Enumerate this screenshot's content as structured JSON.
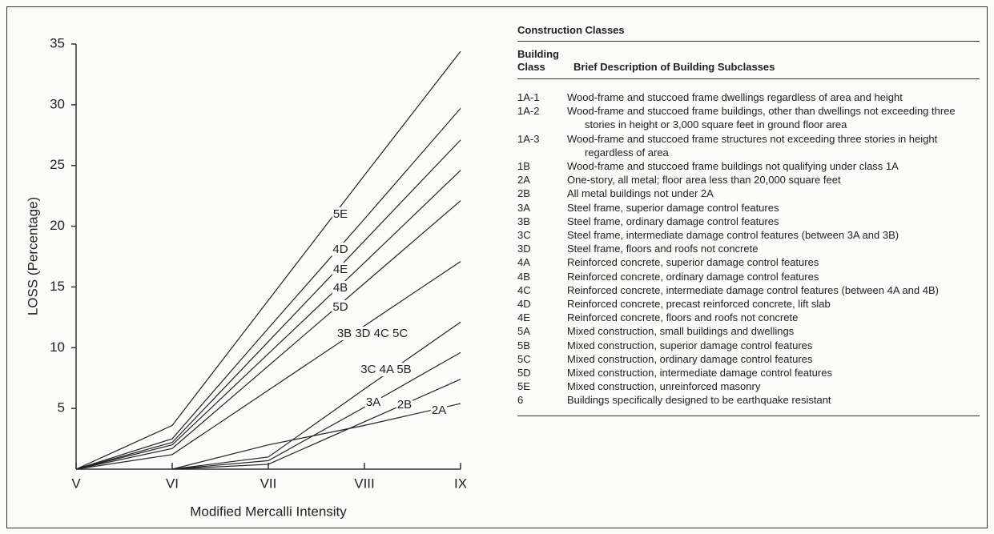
{
  "chart_data": {
    "type": "line",
    "y_label": "LOSS (Percentage)",
    "x_label": "Modified Mercalli Intensity",
    "categories": [
      "V",
      "VI",
      "VII",
      "VIII",
      "IX"
    ],
    "ylim": [
      0,
      35
    ],
    "yticks": [
      5,
      10,
      15,
      20,
      25,
      30,
      35
    ],
    "series": [
      {
        "name": "5E",
        "color": "#222222",
        "values": [
          0,
          3.6,
          13.9,
          24.2,
          34.4
        ]
      },
      {
        "name": "4D",
        "color": "#222222",
        "values": [
          0,
          2.5,
          11.6,
          20.6,
          29.7
        ]
      },
      {
        "name": "4E",
        "color": "#222222",
        "values": [
          0,
          2.2,
          10.5,
          18.8,
          27.1
        ]
      },
      {
        "name": "4B",
        "color": "#222222",
        "values": [
          0,
          2.0,
          9.5,
          17.0,
          24.6
        ]
      },
      {
        "name": "5D",
        "color": "#222222",
        "values": [
          0,
          1.7,
          8.5,
          15.3,
          22.1
        ]
      },
      {
        "name": "3B 3D 4C 5C",
        "color": "#222222",
        "values": [
          0,
          1.2,
          6.5,
          11.8,
          17.1
        ]
      },
      {
        "name": "3C 4A 5B",
        "color": "#222222",
        "values": [
          null,
          0,
          1.0,
          6.6,
          12.1
        ]
      },
      {
        "name": "3A",
        "color": "#222222",
        "values": [
          null,
          0,
          0.7,
          5.1,
          9.6
        ]
      },
      {
        "name": "2B",
        "color": "#222222",
        "values": [
          null,
          0,
          0.4,
          3.9,
          7.4
        ]
      },
      {
        "name": "2A",
        "color": "#222222",
        "values": [
          null,
          0,
          2.0,
          3.6,
          5.4
        ]
      }
    ]
  },
  "table": {
    "title": "Construction Classes",
    "header": [
      "Building\nClass",
      "Brief Description of Building Subclasses"
    ],
    "rows": [
      [
        "1A-1",
        "Wood-frame and stuccoed frame dwellings regardless of area and height"
      ],
      [
        "1A-2",
        "Wood-frame and stuccoed frame buildings, other than dwellings not exceeding three stories in height or 3,000 square feet in ground floor area"
      ],
      [
        "1A-3",
        "Wood-frame and stuccoed frame structures not exceeding three stories in height regardless of area"
      ],
      [
        "1B",
        "Wood-frame and stuccoed frame buildings not qualifying under class 1A"
      ],
      [
        "2A",
        "One-story, all metal; floor area less than 20,000 square feet"
      ],
      [
        "2B",
        "All metal buildings not under 2A"
      ],
      [
        "3A",
        "Steel frame, superior damage control features"
      ],
      [
        "3B",
        "Steel frame, ordinary damage control features"
      ],
      [
        "3C",
        "Steel frame, intermediate damage control features (between 3A and 3B)"
      ],
      [
        "3D",
        "Steel frame, floors and roofs not concrete"
      ],
      [
        "4A",
        "Reinforced concrete, superior damage control features"
      ],
      [
        "4B",
        "Reinforced concrete, ordinary damage control features"
      ],
      [
        "4C",
        "Reinforced concrete, intermediate damage control features (between 4A and 4B)"
      ],
      [
        "4D",
        "Reinforced concrete, precast reinforced concrete, lift slab"
      ],
      [
        "4E",
        "Reinforced concrete, floors and roofs not concrete"
      ],
      [
        "5A",
        "Mixed construction, small buildings and dwellings"
      ],
      [
        "5B",
        "Mixed construction, superior damage control features"
      ],
      [
        "5C",
        "Mixed construction, ordinary damage control features"
      ],
      [
        "5D",
        "Mixed construction, intermediate damage control features"
      ],
      [
        "5E",
        "Mixed construction, unreinforced masonry"
      ],
      [
        "6",
        "Buildings specifically designed to be earthquake resistant"
      ]
    ]
  }
}
